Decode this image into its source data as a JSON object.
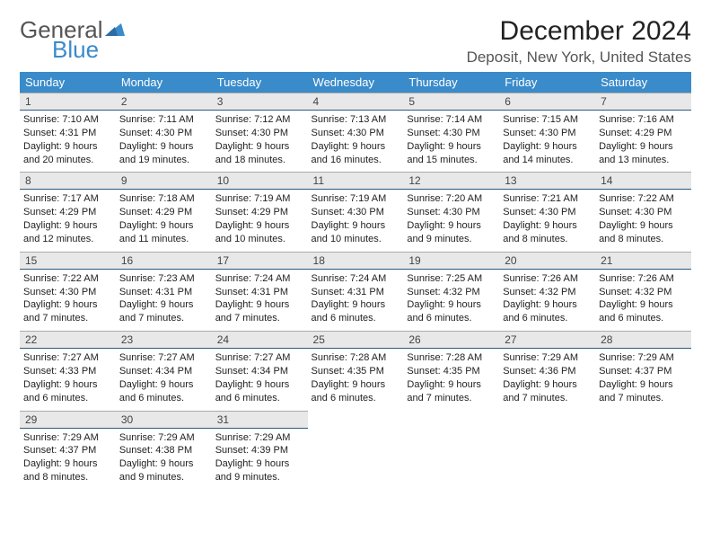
{
  "logo": {
    "general": "General",
    "blue": "Blue"
  },
  "title": "December 2024",
  "location": "Deposit, New York, United States",
  "header_color": "#3a8bca",
  "daynum_bg": "#e8e8e8",
  "dow": [
    "Sunday",
    "Monday",
    "Tuesday",
    "Wednesday",
    "Thursday",
    "Friday",
    "Saturday"
  ],
  "weeks": [
    [
      {
        "n": "1",
        "sr": "Sunrise: 7:10 AM",
        "ss": "Sunset: 4:31 PM",
        "dl": "Daylight: 9 hours and 20 minutes."
      },
      {
        "n": "2",
        "sr": "Sunrise: 7:11 AM",
        "ss": "Sunset: 4:30 PM",
        "dl": "Daylight: 9 hours and 19 minutes."
      },
      {
        "n": "3",
        "sr": "Sunrise: 7:12 AM",
        "ss": "Sunset: 4:30 PM",
        "dl": "Daylight: 9 hours and 18 minutes."
      },
      {
        "n": "4",
        "sr": "Sunrise: 7:13 AM",
        "ss": "Sunset: 4:30 PM",
        "dl": "Daylight: 9 hours and 16 minutes."
      },
      {
        "n": "5",
        "sr": "Sunrise: 7:14 AM",
        "ss": "Sunset: 4:30 PM",
        "dl": "Daylight: 9 hours and 15 minutes."
      },
      {
        "n": "6",
        "sr": "Sunrise: 7:15 AM",
        "ss": "Sunset: 4:30 PM",
        "dl": "Daylight: 9 hours and 14 minutes."
      },
      {
        "n": "7",
        "sr": "Sunrise: 7:16 AM",
        "ss": "Sunset: 4:29 PM",
        "dl": "Daylight: 9 hours and 13 minutes."
      }
    ],
    [
      {
        "n": "8",
        "sr": "Sunrise: 7:17 AM",
        "ss": "Sunset: 4:29 PM",
        "dl": "Daylight: 9 hours and 12 minutes."
      },
      {
        "n": "9",
        "sr": "Sunrise: 7:18 AM",
        "ss": "Sunset: 4:29 PM",
        "dl": "Daylight: 9 hours and 11 minutes."
      },
      {
        "n": "10",
        "sr": "Sunrise: 7:19 AM",
        "ss": "Sunset: 4:29 PM",
        "dl": "Daylight: 9 hours and 10 minutes."
      },
      {
        "n": "11",
        "sr": "Sunrise: 7:19 AM",
        "ss": "Sunset: 4:30 PM",
        "dl": "Daylight: 9 hours and 10 minutes."
      },
      {
        "n": "12",
        "sr": "Sunrise: 7:20 AM",
        "ss": "Sunset: 4:30 PM",
        "dl": "Daylight: 9 hours and 9 minutes."
      },
      {
        "n": "13",
        "sr": "Sunrise: 7:21 AM",
        "ss": "Sunset: 4:30 PM",
        "dl": "Daylight: 9 hours and 8 minutes."
      },
      {
        "n": "14",
        "sr": "Sunrise: 7:22 AM",
        "ss": "Sunset: 4:30 PM",
        "dl": "Daylight: 9 hours and 8 minutes."
      }
    ],
    [
      {
        "n": "15",
        "sr": "Sunrise: 7:22 AM",
        "ss": "Sunset: 4:30 PM",
        "dl": "Daylight: 9 hours and 7 minutes."
      },
      {
        "n": "16",
        "sr": "Sunrise: 7:23 AM",
        "ss": "Sunset: 4:31 PM",
        "dl": "Daylight: 9 hours and 7 minutes."
      },
      {
        "n": "17",
        "sr": "Sunrise: 7:24 AM",
        "ss": "Sunset: 4:31 PM",
        "dl": "Daylight: 9 hours and 7 minutes."
      },
      {
        "n": "18",
        "sr": "Sunrise: 7:24 AM",
        "ss": "Sunset: 4:31 PM",
        "dl": "Daylight: 9 hours and 6 minutes."
      },
      {
        "n": "19",
        "sr": "Sunrise: 7:25 AM",
        "ss": "Sunset: 4:32 PM",
        "dl": "Daylight: 9 hours and 6 minutes."
      },
      {
        "n": "20",
        "sr": "Sunrise: 7:26 AM",
        "ss": "Sunset: 4:32 PM",
        "dl": "Daylight: 9 hours and 6 minutes."
      },
      {
        "n": "21",
        "sr": "Sunrise: 7:26 AM",
        "ss": "Sunset: 4:32 PM",
        "dl": "Daylight: 9 hours and 6 minutes."
      }
    ],
    [
      {
        "n": "22",
        "sr": "Sunrise: 7:27 AM",
        "ss": "Sunset: 4:33 PM",
        "dl": "Daylight: 9 hours and 6 minutes."
      },
      {
        "n": "23",
        "sr": "Sunrise: 7:27 AM",
        "ss": "Sunset: 4:34 PM",
        "dl": "Daylight: 9 hours and 6 minutes."
      },
      {
        "n": "24",
        "sr": "Sunrise: 7:27 AM",
        "ss": "Sunset: 4:34 PM",
        "dl": "Daylight: 9 hours and 6 minutes."
      },
      {
        "n": "25",
        "sr": "Sunrise: 7:28 AM",
        "ss": "Sunset: 4:35 PM",
        "dl": "Daylight: 9 hours and 6 minutes."
      },
      {
        "n": "26",
        "sr": "Sunrise: 7:28 AM",
        "ss": "Sunset: 4:35 PM",
        "dl": "Daylight: 9 hours and 7 minutes."
      },
      {
        "n": "27",
        "sr": "Sunrise: 7:29 AM",
        "ss": "Sunset: 4:36 PM",
        "dl": "Daylight: 9 hours and 7 minutes."
      },
      {
        "n": "28",
        "sr": "Sunrise: 7:29 AM",
        "ss": "Sunset: 4:37 PM",
        "dl": "Daylight: 9 hours and 7 minutes."
      }
    ],
    [
      {
        "n": "29",
        "sr": "Sunrise: 7:29 AM",
        "ss": "Sunset: 4:37 PM",
        "dl": "Daylight: 9 hours and 8 minutes."
      },
      {
        "n": "30",
        "sr": "Sunrise: 7:29 AM",
        "ss": "Sunset: 4:38 PM",
        "dl": "Daylight: 9 hours and 9 minutes."
      },
      {
        "n": "31",
        "sr": "Sunrise: 7:29 AM",
        "ss": "Sunset: 4:39 PM",
        "dl": "Daylight: 9 hours and 9 minutes."
      },
      null,
      null,
      null,
      null
    ]
  ]
}
